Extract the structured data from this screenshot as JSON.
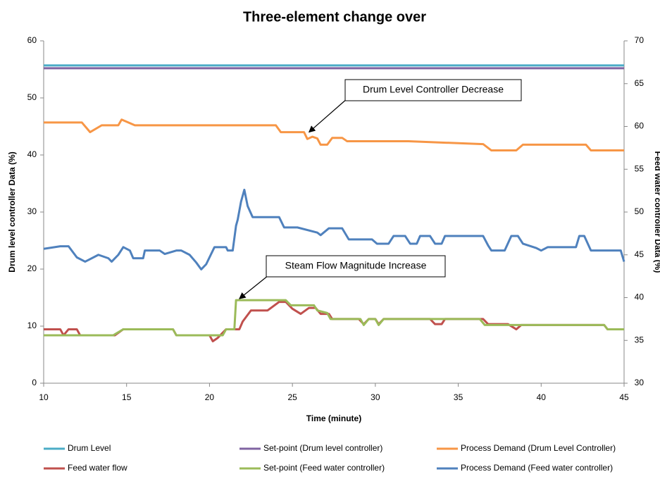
{
  "chart_data": {
    "type": "line",
    "title": "Three-element change over",
    "x_label": "Time (minute)",
    "y_label": "Drum level controller  Data (%)",
    "y2_label": "Feed water controller Data (%)",
    "xlim": [
      10,
      45
    ],
    "xticks": [
      10,
      15,
      20,
      25,
      30,
      35,
      40,
      45
    ],
    "ylim": [
      0,
      60
    ],
    "yticks": [
      0,
      10,
      20,
      30,
      40,
      50,
      60
    ],
    "y2lim": [
      30,
      70
    ],
    "y2ticks": [
      30,
      35,
      40,
      45,
      50,
      55,
      60,
      65,
      70
    ],
    "grid": false,
    "legend": "bottom",
    "annotations": [
      {
        "text": "Drum Level Controller Decrease",
        "x": 26,
        "y": 44
      },
      {
        "text": "Steam  Flow Magnitude Increase",
        "x": 21.8,
        "y": 14.8
      }
    ],
    "series": [
      {
        "name": "Drum Level",
        "color": "#4bacc6",
        "axis": "y",
        "x": [
          10,
          45
        ],
        "values": [
          55.7,
          55.7
        ]
      },
      {
        "name": "Set-point (Drum level controller)",
        "color": "#8064a2",
        "axis": "y",
        "x": [
          10,
          45
        ],
        "values": [
          55.2,
          55.2
        ]
      },
      {
        "name": "Process Demand (Drum Level Controller)",
        "color": "#f79646",
        "axis": "y",
        "x": [
          10,
          12.3,
          12.8,
          13.5,
          14.5,
          14.7,
          15.5,
          24,
          24.3,
          25.7,
          25.9,
          26.2,
          26.5,
          26.7,
          27.1,
          27.4,
          28,
          28.3,
          32,
          36.5,
          37,
          38.5,
          38.9,
          42.7,
          43,
          45
        ],
        "values": [
          45.7,
          45.7,
          44,
          45.2,
          45.2,
          46.2,
          45.2,
          45.2,
          44,
          44,
          42.8,
          43.2,
          42.9,
          41.8,
          41.8,
          43,
          43,
          42.4,
          42.4,
          41.9,
          40.8,
          40.8,
          41.8,
          41.8,
          40.8,
          40.8
        ]
      },
      {
        "name": "Feed water flow",
        "color": "#c0504d",
        "axis": "y2",
        "x": [
          10,
          11,
          11.2,
          11.5,
          12,
          12.2,
          14.3,
          14.8,
          17.8,
          18,
          20,
          20.2,
          20.5,
          21,
          21.8,
          22,
          22.5,
          23.5,
          24.2,
          24.6,
          25,
          25.5,
          26,
          26.4,
          26.7,
          27.2,
          27.4,
          29,
          29.3,
          29.6,
          30,
          30.2,
          30.5,
          33.3,
          33.6,
          34,
          34.2,
          36.5,
          36.8,
          38,
          38.5,
          38.8,
          43.8,
          44,
          45
        ],
        "values": [
          36.3,
          36.3,
          35.6,
          36.3,
          36.3,
          35.6,
          35.6,
          36.3,
          36.3,
          35.6,
          35.6,
          34.9,
          35.3,
          36.3,
          36.3,
          37.2,
          38.5,
          38.5,
          39.5,
          39.5,
          38.7,
          38.1,
          38.8,
          38.8,
          38.1,
          38.1,
          37.5,
          37.5,
          36.9,
          37.5,
          37.5,
          36.9,
          37.5,
          37.5,
          36.9,
          36.9,
          37.5,
          37.5,
          36.9,
          36.9,
          36.3,
          36.8,
          36.8,
          36.3,
          36.3
        ]
      },
      {
        "name": "Set-point (Feed water controller)",
        "color": "#9bbb59",
        "axis": "y2",
        "x": [
          10,
          14.2,
          14.8,
          17.8,
          18,
          20.8,
          21,
          21.5,
          21.6,
          24.6,
          24.9,
          26.3,
          26.5,
          27.1,
          27.3,
          29.1,
          29.3,
          29.6,
          30,
          30.2,
          30.5,
          36.3,
          36.6,
          43.8,
          44,
          45
        ],
        "values": [
          35.6,
          35.6,
          36.3,
          36.3,
          35.6,
          35.6,
          36.3,
          36.3,
          39.7,
          39.7,
          39.1,
          39.1,
          38.5,
          38.2,
          37.5,
          37.5,
          36.8,
          37.5,
          37.5,
          36.8,
          37.5,
          37.5,
          36.8,
          36.8,
          36.3,
          36.3
        ]
      },
      {
        "name": "Process Demand (Feed water controller)",
        "color": "#4f81bd",
        "axis": "y2",
        "x": [
          10,
          11,
          11.5,
          12,
          12.5,
          13.3,
          13.9,
          14.1,
          14.5,
          14.8,
          15.2,
          15.4,
          16,
          16.1,
          17,
          17.3,
          18,
          18.3,
          18.8,
          19.2,
          19.5,
          19.8,
          20.3,
          21,
          21.1,
          21.4,
          21.6,
          21.7,
          21.9,
          22.1,
          22.3,
          22.6,
          24.2,
          24.5,
          25.3,
          26.5,
          26.7,
          27.2,
          28,
          28.4,
          29.8,
          30.1,
          30.8,
          31.1,
          31.8,
          32.1,
          32.5,
          32.7,
          33.3,
          33.6,
          34,
          34.2,
          36.5,
          36.8,
          37,
          37.8,
          38.2,
          38.6,
          38.9,
          39.7,
          40,
          40.4,
          42.1,
          42.3,
          42.6,
          43,
          44.8,
          45
        ],
        "values": [
          45.7,
          46.0,
          46.0,
          44.7,
          44.2,
          45.0,
          44.6,
          44.2,
          45.0,
          45.9,
          45.5,
          44.6,
          44.6,
          45.5,
          45.5,
          45.1,
          45.5,
          45.5,
          45.0,
          44.1,
          43.3,
          43.9,
          45.9,
          45.9,
          45.5,
          45.5,
          48.4,
          49.1,
          51.2,
          52.6,
          50.7,
          49.4,
          49.4,
          48.2,
          48.2,
          47.6,
          47.3,
          48.1,
          48.1,
          46.8,
          46.8,
          46.3,
          46.3,
          47.2,
          47.2,
          46.3,
          46.3,
          47.2,
          47.2,
          46.3,
          46.3,
          47.2,
          47.2,
          46.1,
          45.5,
          45.5,
          47.2,
          47.2,
          46.3,
          45.8,
          45.5,
          45.9,
          45.9,
          47.2,
          47.2,
          45.5,
          45.5,
          44.2
        ]
      }
    ]
  }
}
